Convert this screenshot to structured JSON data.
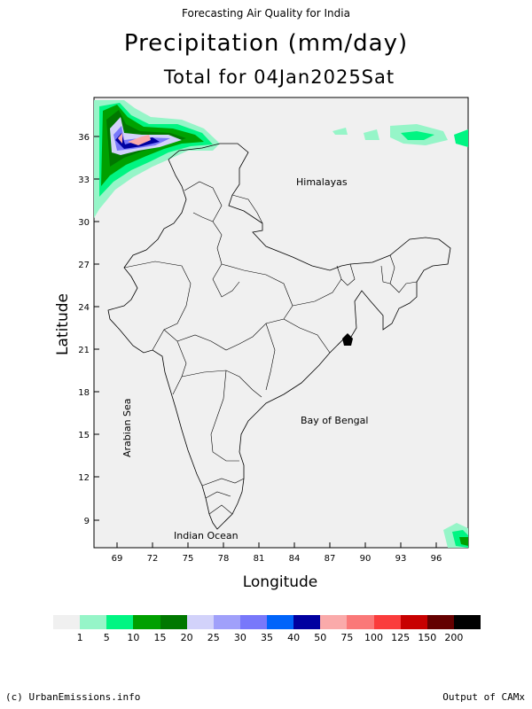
{
  "header": {
    "top": "Forecasting Air Quality for India",
    "title": "Precipitation (mm/day)",
    "subtitle": "Total for 04Jan2025Sat"
  },
  "map": {
    "xlabel": "Longitude",
    "ylabel": "Latitude",
    "x_ticks": [
      "69",
      "72",
      "75",
      "78",
      "81",
      "84",
      "87",
      "90",
      "93",
      "96"
    ],
    "y_ticks": [
      "36",
      "33",
      "30",
      "27",
      "24",
      "21",
      "18",
      "15",
      "12",
      "9"
    ],
    "labels": {
      "himalayas": "Himalayas",
      "bay_of_bengal": "Bay of Bengal",
      "arabian_sea": "Arabian Sea",
      "indian_ocean": "Indian Ocean"
    },
    "background_color": "#f0f0f0"
  },
  "colorbar": {
    "labels": [
      "1",
      "5",
      "10",
      "15",
      "20",
      "25",
      "30",
      "35",
      "40",
      "50",
      "75",
      "100",
      "125",
      "150",
      "200"
    ],
    "colors": [
      "#f0f0f0",
      "#96f5c8",
      "#00f582",
      "#00a000",
      "#007800",
      "#d2d2fa",
      "#a0a0fa",
      "#7878fa",
      "#0064fa",
      "#0000a0",
      "#faaaaa",
      "#fa7878",
      "#fa3c3c",
      "#c80000",
      "#640000",
      "#000000"
    ]
  },
  "footer": {
    "left": "(c) UrbanEmissions.info",
    "right": "Output of CAMx"
  }
}
